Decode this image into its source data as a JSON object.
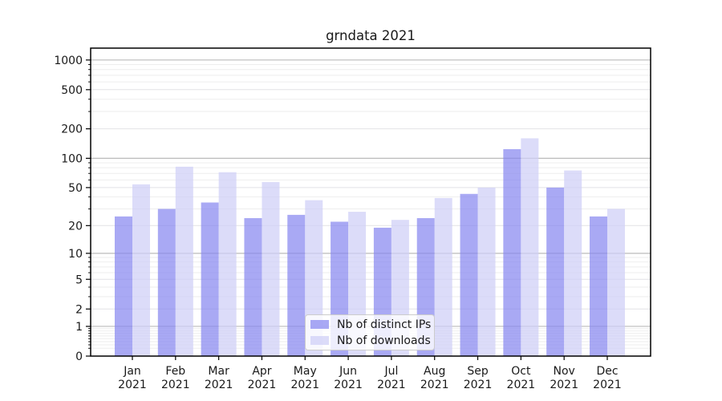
{
  "title": "grndata 2021",
  "chart_data": {
    "type": "bar",
    "title": "grndata 2021",
    "categories": [
      "Jan 2021",
      "Feb 2021",
      "Mar 2021",
      "Apr 2021",
      "May 2021",
      "Jun 2021",
      "Jul 2021",
      "Aug 2021",
      "Sep 2021",
      "Oct 2021",
      "Nov 2021",
      "Dec 2021"
    ],
    "series": [
      {
        "name": "Nb of distinct IPs",
        "color": "rgba(133,133,240,0.70)",
        "values": [
          25,
          30,
          35,
          24,
          26,
          22,
          19,
          24,
          43,
          124,
          50,
          25
        ]
      },
      {
        "name": "Nb of downloads",
        "color": "rgba(206,206,247,0.72)",
        "values": [
          54,
          82,
          72,
          57,
          37,
          28,
          23,
          39,
          50,
          160,
          75,
          30
        ]
      }
    ],
    "y_ticks": [
      0,
      1,
      2,
      5,
      10,
      20,
      50,
      100,
      200,
      500,
      1000
    ],
    "y_scale": "log(value+1)",
    "ylim": [
      0,
      1320
    ],
    "xlabel": "",
    "ylabel": "",
    "grid": true,
    "legend_position": "lower center"
  },
  "colors": {
    "bar_ips": "rgba(133,133,240,0.70)",
    "bar_downloads": "rgba(206,206,247,0.72)",
    "grid_decade": "#bbbbbb",
    "grid_major": "#e2e2e6",
    "grid_minor": "#eeeeee",
    "axis": "#000000",
    "text": "#1a1a1a",
    "legend_border": "#cccccc",
    "legend_bg": "rgba(255,255,255,0.8)"
  }
}
